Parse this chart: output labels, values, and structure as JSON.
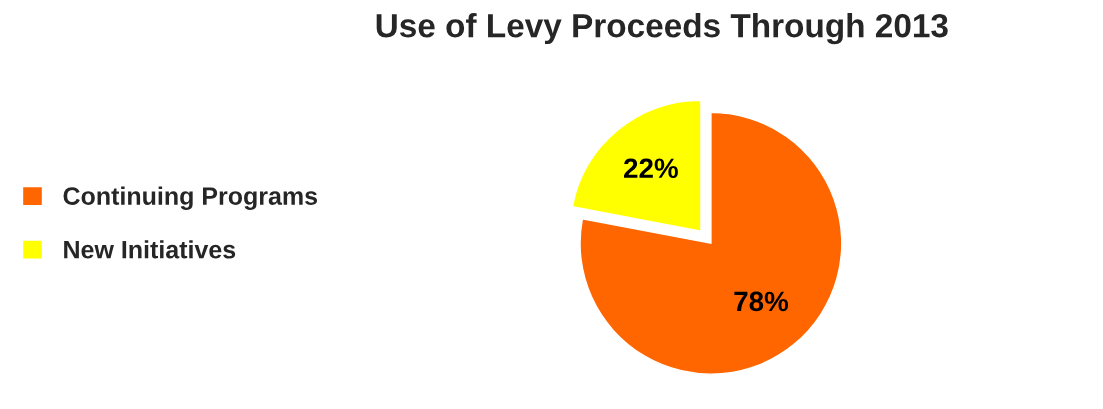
{
  "chart_data": {
    "type": "pie",
    "title": "Use of Levy Proceeds Through 2013",
    "categories": [
      "Continuing Programs",
      "New Initiatives"
    ],
    "values": [
      78,
      22
    ],
    "colors": [
      "#ff6600",
      "#ffff00"
    ],
    "value_labels": [
      "78%",
      "22%"
    ],
    "legend": "left"
  }
}
